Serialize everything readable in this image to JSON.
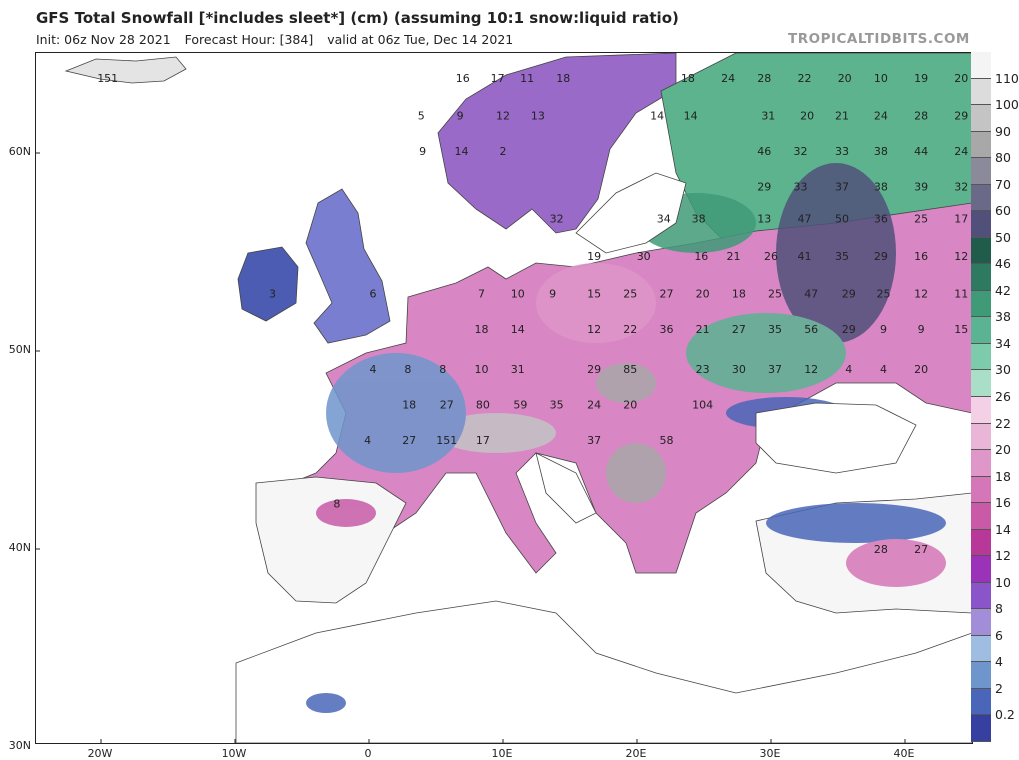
{
  "header": {
    "title": "GFS Total Snowfall [*includes sleet*] (cm) (assuming 10:1 snow:liquid ratio)",
    "init": "Init: 06z Nov 28 2021",
    "forecast_hour": "Forecast Hour: [384]",
    "valid": "valid at 06z Tue, Dec 14 2021",
    "brand": "TROPICALTIDBITS.COM"
  },
  "axes": {
    "lat_labels": [
      "60N",
      "50N",
      "40N",
      "30N"
    ],
    "lon_labels": [
      "20W",
      "10W",
      "0",
      "10E",
      "20E",
      "30E",
      "40E"
    ]
  },
  "colorbar": {
    "labels": [
      "110",
      "100",
      "90",
      "80",
      "70",
      "60",
      "50",
      "46",
      "42",
      "38",
      "34",
      "30",
      "26",
      "22",
      "20",
      "18",
      "16",
      "14",
      "12",
      "10",
      "8",
      "6",
      "4",
      "2",
      "0.2"
    ],
    "colors": [
      "#f4f4f4",
      "#dcdcdc",
      "#c4c4c4",
      "#a8a8a8",
      "#8a8a9a",
      "#6a6a88",
      "#50507a",
      "#1f5d4a",
      "#2e7a60",
      "#3f9a78",
      "#5ab392",
      "#7ccbaa",
      "#a9dfc6",
      "#f3d0e6",
      "#eab6d8",
      "#df96c8",
      "#d476b7",
      "#c85aa8",
      "#b8389a",
      "#9a33b8",
      "#8a55c8",
      "#a28ed8",
      "#9fbde0",
      "#6f96cc",
      "#4a66b8",
      "#3640a0"
    ]
  },
  "map_values": [
    {
      "v": "151",
      "lon": -19.5,
      "lat": 63.8
    },
    {
      "v": "16",
      "lon": 7,
      "lat": 63.8
    },
    {
      "v": "17",
      "lon": 9.6,
      "lat": 63.8
    },
    {
      "v": "11",
      "lon": 11.8,
      "lat": 63.8
    },
    {
      "v": "18",
      "lon": 14.5,
      "lat": 63.8
    },
    {
      "v": "18",
      "lon": 23.8,
      "lat": 63.8
    },
    {
      "v": "24",
      "lon": 26.8,
      "lat": 63.8
    },
    {
      "v": "28",
      "lon": 29.5,
      "lat": 63.8
    },
    {
      "v": "22",
      "lon": 32.5,
      "lat": 63.8
    },
    {
      "v": "20",
      "lon": 35.5,
      "lat": 63.8
    },
    {
      "v": "10",
      "lon": 38.2,
      "lat": 63.8
    },
    {
      "v": "19",
      "lon": 41.2,
      "lat": 63.8
    },
    {
      "v": "20",
      "lon": 44.2,
      "lat": 63.8
    },
    {
      "v": "5",
      "lon": 3.9,
      "lat": 61.9
    },
    {
      "v": "9",
      "lon": 6.8,
      "lat": 61.9
    },
    {
      "v": "12",
      "lon": 10,
      "lat": 61.9
    },
    {
      "v": "13",
      "lon": 12.6,
      "lat": 61.9
    },
    {
      "v": "14",
      "lon": 21.5,
      "lat": 61.9
    },
    {
      "v": "14",
      "lon": 24,
      "lat": 61.9
    },
    {
      "v": "31",
      "lon": 29.8,
      "lat": 61.9
    },
    {
      "v": "20",
      "lon": 32.7,
      "lat": 61.9
    },
    {
      "v": "21",
      "lon": 35.3,
      "lat": 61.9
    },
    {
      "v": "24",
      "lon": 38.2,
      "lat": 61.9
    },
    {
      "v": "28",
      "lon": 41.2,
      "lat": 61.9
    },
    {
      "v": "29",
      "lon": 44.2,
      "lat": 61.9
    },
    {
      "v": "9",
      "lon": 4,
      "lat": 60.1
    },
    {
      "v": "14",
      "lon": 6.9,
      "lat": 60.1
    },
    {
      "v": "2",
      "lon": 10,
      "lat": 60.1
    },
    {
      "v": "46",
      "lon": 29.5,
      "lat": 60.1
    },
    {
      "v": "32",
      "lon": 32.2,
      "lat": 60.1
    },
    {
      "v": "33",
      "lon": 35.3,
      "lat": 60.1
    },
    {
      "v": "38",
      "lon": 38.2,
      "lat": 60.1
    },
    {
      "v": "44",
      "lon": 41.2,
      "lat": 60.1
    },
    {
      "v": "24",
      "lon": 44.2,
      "lat": 60.1
    },
    {
      "v": "29",
      "lon": 29.5,
      "lat": 58.3
    },
    {
      "v": "33",
      "lon": 32.2,
      "lat": 58.3
    },
    {
      "v": "37",
      "lon": 35.3,
      "lat": 58.3
    },
    {
      "v": "38",
      "lon": 38.2,
      "lat": 58.3
    },
    {
      "v": "39",
      "lon": 41.2,
      "lat": 58.3
    },
    {
      "v": "32",
      "lon": 44.2,
      "lat": 58.3
    },
    {
      "v": "32",
      "lon": 14,
      "lat": 56.7
    },
    {
      "v": "34",
      "lon": 22,
      "lat": 56.7
    },
    {
      "v": "38",
      "lon": 24.6,
      "lat": 56.7
    },
    {
      "v": "13",
      "lon": 29.5,
      "lat": 56.7
    },
    {
      "v": "47",
      "lon": 32.5,
      "lat": 56.7
    },
    {
      "v": "50",
      "lon": 35.3,
      "lat": 56.7
    },
    {
      "v": "36",
      "lon": 38.2,
      "lat": 56.7
    },
    {
      "v": "25",
      "lon": 41.2,
      "lat": 56.7
    },
    {
      "v": "17",
      "lon": 44.2,
      "lat": 56.7
    },
    {
      "v": "19",
      "lon": 16.8,
      "lat": 54.8
    },
    {
      "v": "30",
      "lon": 20.5,
      "lat": 54.8
    },
    {
      "v": "16",
      "lon": 24.8,
      "lat": 54.8
    },
    {
      "v": "21",
      "lon": 27.2,
      "lat": 54.8
    },
    {
      "v": "26",
      "lon": 30,
      "lat": 54.8
    },
    {
      "v": "41",
      "lon": 32.5,
      "lat": 54.8
    },
    {
      "v": "35",
      "lon": 35.3,
      "lat": 54.8
    },
    {
      "v": "29",
      "lon": 38.2,
      "lat": 54.8
    },
    {
      "v": "16",
      "lon": 41.2,
      "lat": 54.8
    },
    {
      "v": "12",
      "lon": 44.2,
      "lat": 54.8
    },
    {
      "v": "3",
      "lon": -7.2,
      "lat": 52.9
    },
    {
      "v": "6",
      "lon": 0.3,
      "lat": 52.9
    },
    {
      "v": "7",
      "lon": 8.4,
      "lat": 52.9
    },
    {
      "v": "10",
      "lon": 11.1,
      "lat": 52.9
    },
    {
      "v": "9",
      "lon": 13.7,
      "lat": 52.9
    },
    {
      "v": "15",
      "lon": 16.8,
      "lat": 52.9
    },
    {
      "v": "25",
      "lon": 19.5,
      "lat": 52.9
    },
    {
      "v": "27",
      "lon": 22.2,
      "lat": 52.9
    },
    {
      "v": "20",
      "lon": 24.9,
      "lat": 52.9
    },
    {
      "v": "18",
      "lon": 27.6,
      "lat": 52.9
    },
    {
      "v": "25",
      "lon": 30.3,
      "lat": 52.9
    },
    {
      "v": "47",
      "lon": 33,
      "lat": 52.9
    },
    {
      "v": "29",
      "lon": 35.8,
      "lat": 52.9
    },
    {
      "v": "25",
      "lon": 38.4,
      "lat": 52.9
    },
    {
      "v": "12",
      "lon": 41.2,
      "lat": 52.9
    },
    {
      "v": "11",
      "lon": 44.2,
      "lat": 52.9
    },
    {
      "v": "18",
      "lon": 8.4,
      "lat": 51.1
    },
    {
      "v": "14",
      "lon": 11.1,
      "lat": 51.1
    },
    {
      "v": "12",
      "lon": 16.8,
      "lat": 51.1
    },
    {
      "v": "22",
      "lon": 19.5,
      "lat": 51.1
    },
    {
      "v": "36",
      "lon": 22.2,
      "lat": 51.1
    },
    {
      "v": "21",
      "lon": 24.9,
      "lat": 51.1
    },
    {
      "v": "27",
      "lon": 27.6,
      "lat": 51.1
    },
    {
      "v": "35",
      "lon": 30.3,
      "lat": 51.1
    },
    {
      "v": "56",
      "lon": 33,
      "lat": 51.1
    },
    {
      "v": "29",
      "lon": 35.8,
      "lat": 51.1
    },
    {
      "v": "9",
      "lon": 38.4,
      "lat": 51.1
    },
    {
      "v": "9",
      "lon": 41.2,
      "lat": 51.1
    },
    {
      "v": "15",
      "lon": 44.2,
      "lat": 51.1
    },
    {
      "v": "4",
      "lon": 0.3,
      "lat": 49.1
    },
    {
      "v": "8",
      "lon": 2.9,
      "lat": 49.1
    },
    {
      "v": "8",
      "lon": 5.5,
      "lat": 49.1
    },
    {
      "v": "10",
      "lon": 8.4,
      "lat": 49.1
    },
    {
      "v": "31",
      "lon": 11.1,
      "lat": 49.1
    },
    {
      "v": "29",
      "lon": 16.8,
      "lat": 49.1
    },
    {
      "v": "85",
      "lon": 19.5,
      "lat": 49.1
    },
    {
      "v": "23",
      "lon": 24.9,
      "lat": 49.1
    },
    {
      "v": "30",
      "lon": 27.6,
      "lat": 49.1
    },
    {
      "v": "37",
      "lon": 30.3,
      "lat": 49.1
    },
    {
      "v": "12",
      "lon": 33,
      "lat": 49.1
    },
    {
      "v": "4",
      "lon": 35.8,
      "lat": 49.1
    },
    {
      "v": "4",
      "lon": 38.4,
      "lat": 49.1
    },
    {
      "v": "20",
      "lon": 41.2,
      "lat": 49.1
    },
    {
      "v": "18",
      "lon": 3,
      "lat": 47.3
    },
    {
      "v": "27",
      "lon": 5.8,
      "lat": 47.3
    },
    {
      "v": "80",
      "lon": 8.5,
      "lat": 47.3
    },
    {
      "v": "59",
      "lon": 11.3,
      "lat": 47.3
    },
    {
      "v": "35",
      "lon": 14,
      "lat": 47.3
    },
    {
      "v": "24",
      "lon": 16.8,
      "lat": 47.3
    },
    {
      "v": "20",
      "lon": 19.5,
      "lat": 47.3
    },
    {
      "v": "104",
      "lon": 24.9,
      "lat": 47.3
    },
    {
      "v": "4",
      "lon": -0.1,
      "lat": 45.5
    },
    {
      "v": "27",
      "lon": 3,
      "lat": 45.5
    },
    {
      "v": "151",
      "lon": 5.8,
      "lat": 45.5
    },
    {
      "v": "17",
      "lon": 8.5,
      "lat": 45.5
    },
    {
      "v": "37",
      "lon": 16.8,
      "lat": 45.5
    },
    {
      "v": "58",
      "lon": 22.2,
      "lat": 45.5
    },
    {
      "v": "8",
      "lon": -2.4,
      "lat": 42.3
    },
    {
      "v": "28",
      "lon": 38.2,
      "lat": 40
    },
    {
      "v": "27",
      "lon": 41.2,
      "lat": 40
    }
  ]
}
